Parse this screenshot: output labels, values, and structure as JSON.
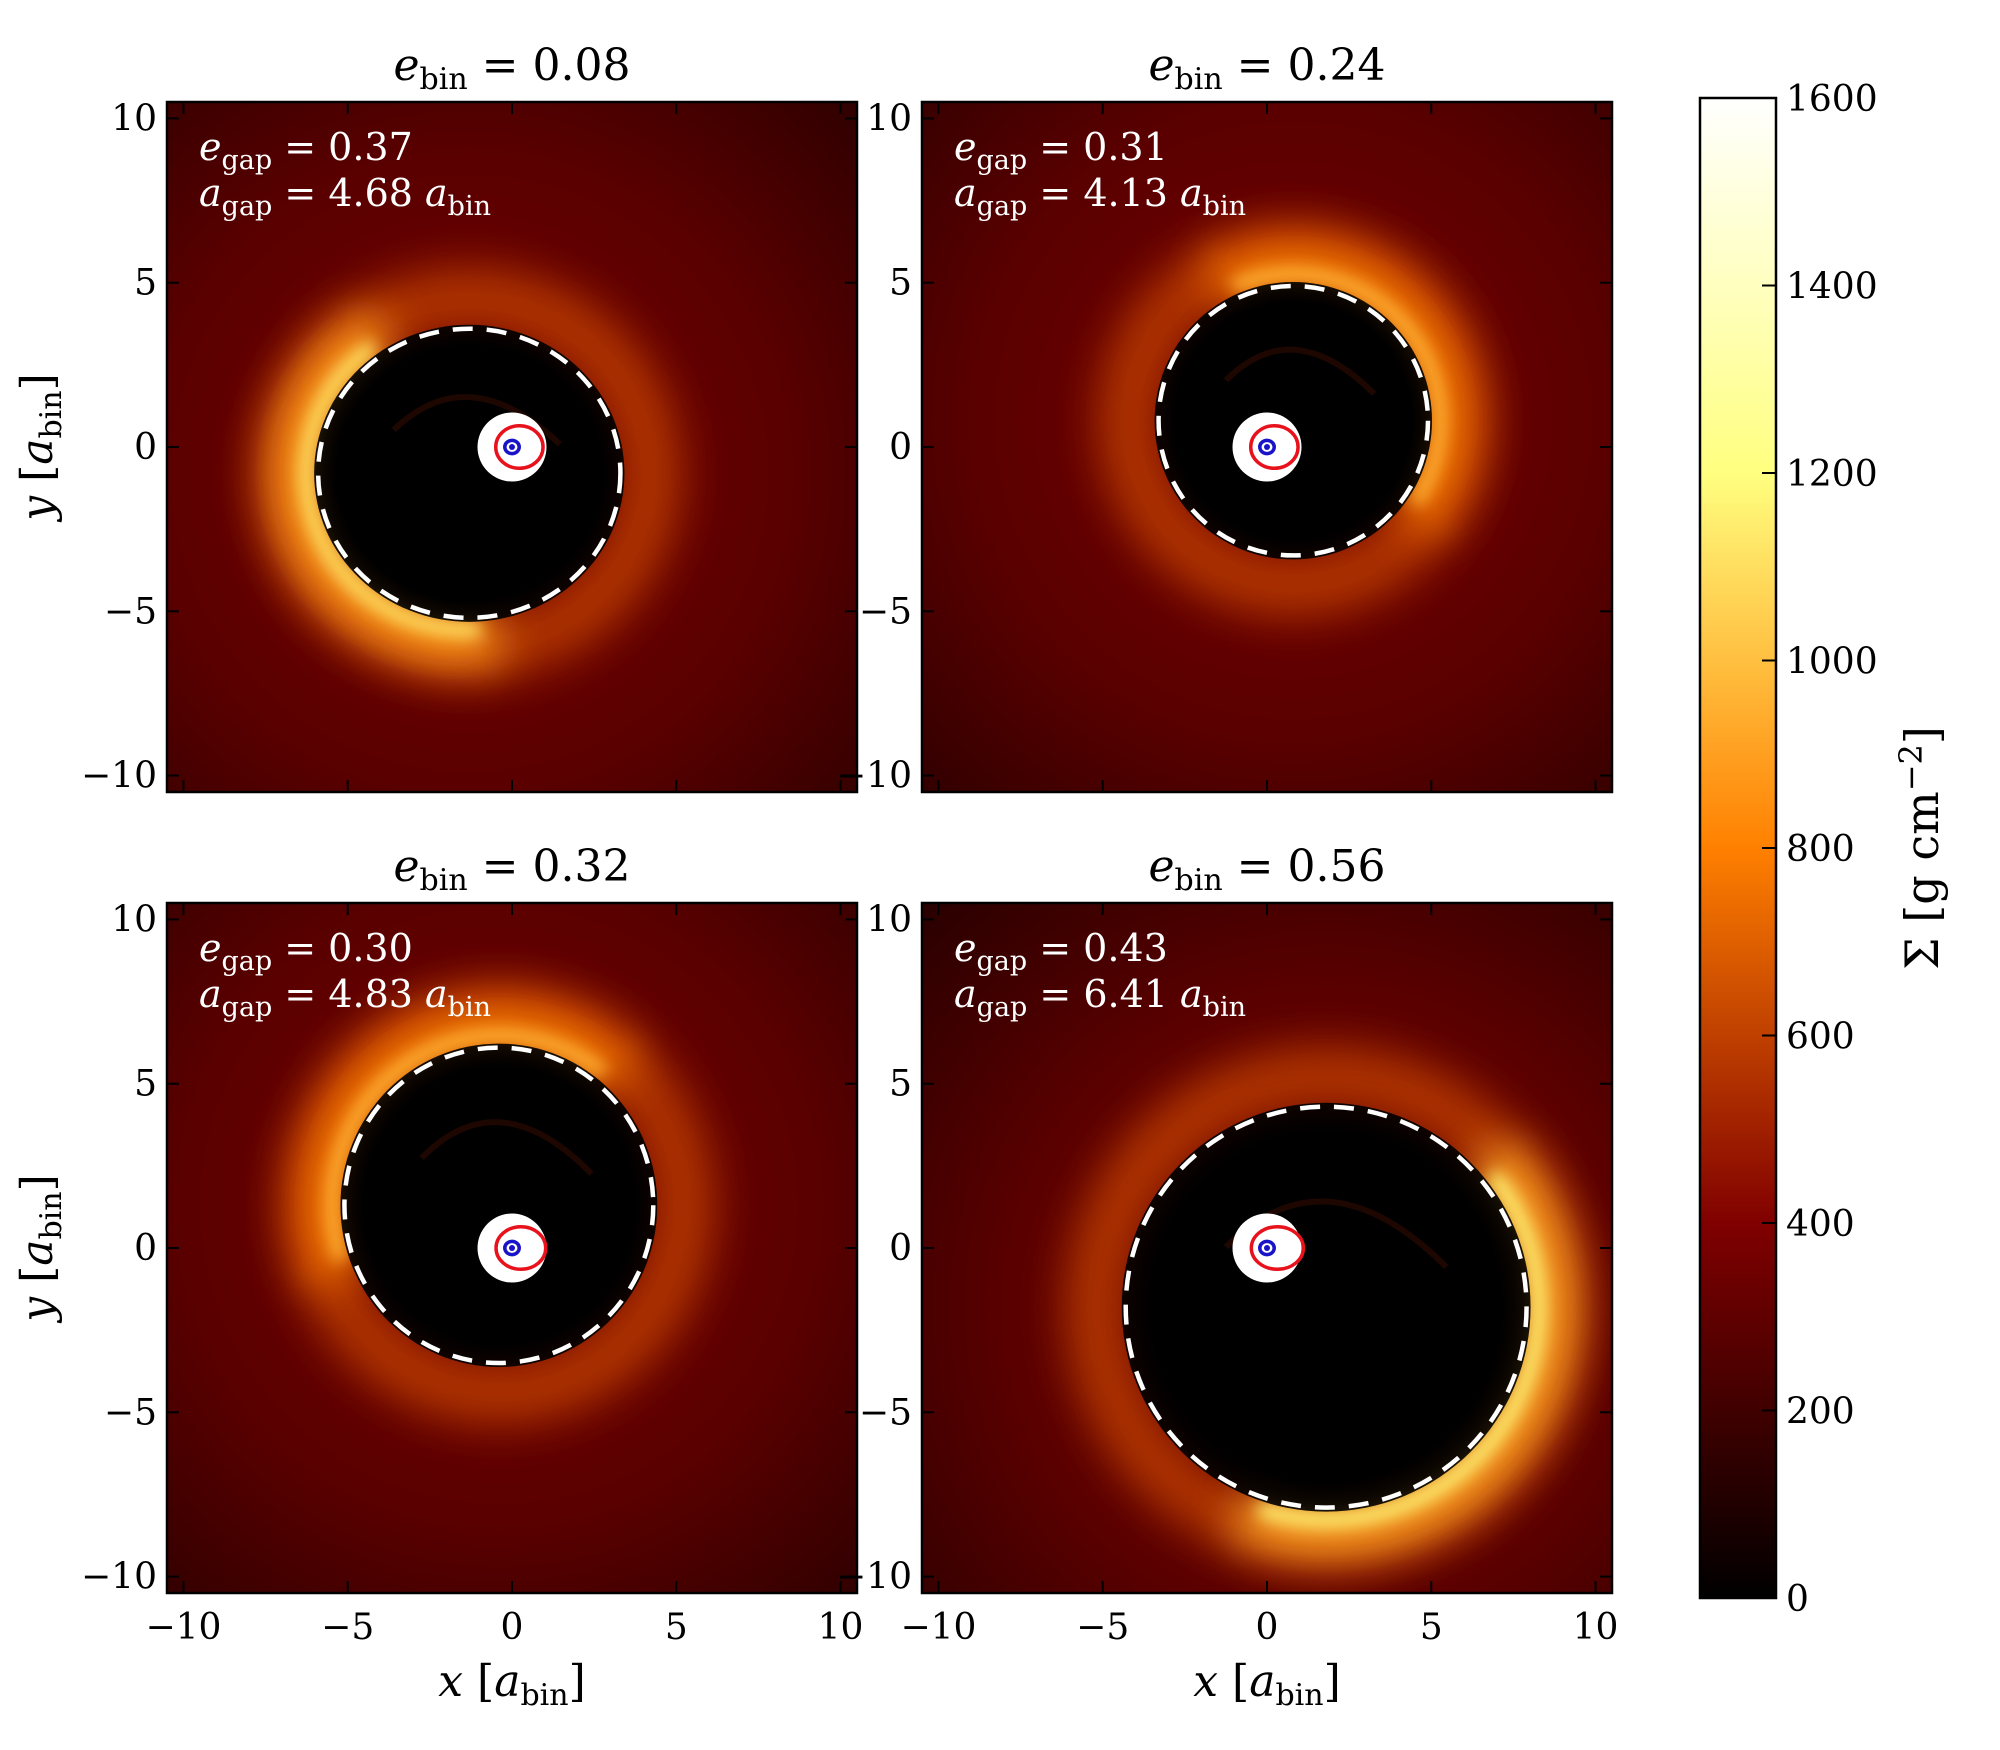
{
  "colorbar": {
    "label": "Σ [g cm⁻²]",
    "range": [
      0,
      1600
    ],
    "ticks": [
      0,
      200,
      400,
      600,
      800,
      1000,
      1200,
      1400,
      1600
    ],
    "tick_labels": [
      "0",
      "200",
      "400",
      "600",
      "800",
      "1000",
      "1200",
      "1400",
      "1600"
    ],
    "colormap": "afmhot",
    "colors": [
      "#000000",
      "#c04000",
      "#ff8000",
      "#ffc040",
      "#ffffff"
    ]
  },
  "axes": {
    "xlabel": "x [a_bin]",
    "ylabel": "y [a_bin]",
    "xlim": [
      -10.5,
      10.5
    ],
    "ylim": [
      -10.5,
      10.5
    ],
    "ticks": [
      -10,
      -5,
      0,
      5,
      10
    ],
    "tick_labels": [
      "−10",
      "−5",
      "0",
      "5",
      "10"
    ]
  },
  "chart_data": [
    {
      "type": "heatmap",
      "title": "e_bin = 0.08",
      "e_bin": "0.08",
      "e_gap": "0.37",
      "a_gap": "4.68",
      "gap_ellipse": {
        "cx": -1.3,
        "cy": -0.8,
        "rx": 4.6,
        "ry": 4.4
      },
      "bright_side_angle_deg": 200,
      "peak_sigma": 1100,
      "binary_orbit": {
        "rx": 1.0,
        "ry": 0.9
      }
    },
    {
      "type": "heatmap",
      "title": "e_bin = 0.24",
      "e_bin": "0.24",
      "e_gap": "0.31",
      "a_gap": "4.13",
      "gap_ellipse": {
        "cx": 0.8,
        "cy": 0.8,
        "rx": 4.1,
        "ry": 4.1
      },
      "bright_side_angle_deg": 40,
      "peak_sigma": 950,
      "binary_orbit": {
        "rx": 1.0,
        "ry": 0.9
      }
    },
    {
      "type": "heatmap",
      "title": "e_bin = 0.32",
      "e_bin": "0.32",
      "e_gap": "0.30",
      "a_gap": "4.83",
      "gap_ellipse": {
        "cx": -0.4,
        "cy": 1.3,
        "rx": 4.7,
        "ry": 4.8
      },
      "bright_side_angle_deg": 125,
      "peak_sigma": 950,
      "binary_orbit": {
        "rx": 1.05,
        "ry": 0.9
      }
    },
    {
      "type": "heatmap",
      "title": "e_bin = 0.56",
      "e_bin": "0.56",
      "e_gap": "0.43",
      "a_gap": "6.41",
      "gap_ellipse": {
        "cx": 1.8,
        "cy": -1.8,
        "rx": 6.1,
        "ry": 6.1
      },
      "bright_side_angle_deg": -35,
      "peak_sigma": 1150,
      "binary_orbit": {
        "rx": 1.1,
        "ry": 0.9
      }
    }
  ]
}
